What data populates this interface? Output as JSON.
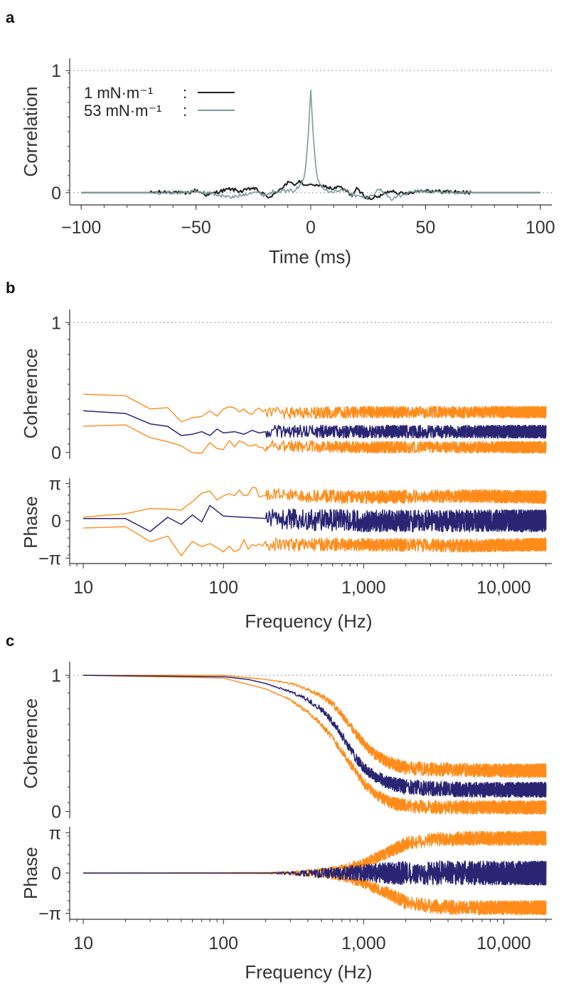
{
  "colors": {
    "dark": "#1e1e1e",
    "gray": "#7d9a9a",
    "orange": "#ff8c1a",
    "navy": "#2a2573",
    "reference": "#8a8a8a"
  },
  "chart_data": [
    {
      "panel": "a",
      "type": "line",
      "xlabel": "Time (ms)",
      "ylabel": "Correlation",
      "xlim": [
        -100,
        100
      ],
      "ylim": [
        -0.1,
        1.1
      ],
      "xticks": [
        -100,
        -50,
        0,
        50,
        100
      ],
      "xtick_labels": [
        "−100",
        "−50",
        "0",
        "50",
        "100"
      ],
      "yticks": [
        0,
        1
      ],
      "ytick_labels": [
        "0",
        "1"
      ],
      "reference_lines": [
        0,
        1
      ],
      "legend": {
        "placement": "top-left",
        "entries": [
          "1 mN·m⁻¹",
          "53 mN·m⁻¹"
        ]
      },
      "series": [
        {
          "name": "1 mN·m⁻¹",
          "color": "dark",
          "x": [
            -100,
            -70,
            -60,
            -55,
            -50,
            -45,
            -40,
            -35,
            -30,
            -25,
            -20,
            -17,
            -15,
            -12,
            -10,
            -7,
            -5,
            -2,
            0,
            3,
            5,
            8,
            10,
            12,
            15,
            18,
            20,
            25,
            30,
            35,
            40,
            45,
            50,
            55,
            60,
            70,
            100
          ],
          "y": [
            0,
            0,
            0.01,
            -0.01,
            0.02,
            -0.02,
            0.01,
            0.03,
            0.01,
            0.04,
            -0.02,
            -0.04,
            0.01,
            0.05,
            0.08,
            0.07,
            0.09,
            0.06,
            0.07,
            0.05,
            0.06,
            0.04,
            0.03,
            0.05,
            0.02,
            -0.02,
            0.03,
            -0.05,
            -0.03,
            0.02,
            -0.01,
            0.01,
            0.02,
            0.01,
            0.01,
            0,
            0
          ]
        },
        {
          "name": "53 mN·m⁻¹",
          "color": "gray",
          "x": [
            -100,
            -60,
            -50,
            -45,
            -40,
            -35,
            -30,
            -25,
            -20,
            -15,
            -10,
            -7,
            -5,
            -3,
            -2,
            -1,
            0,
            1,
            2,
            3,
            5,
            7,
            10,
            15,
            20,
            25,
            30,
            35,
            40,
            45,
            50,
            60,
            100
          ],
          "y": [
            0,
            0,
            0.01,
            0,
            -0.02,
            -0.04,
            -0.02,
            0.01,
            -0.02,
            0.02,
            0.01,
            0.02,
            0.05,
            0.12,
            0.25,
            0.5,
            0.84,
            0.5,
            0.25,
            0.12,
            0.05,
            0.02,
            0.01,
            0.02,
            -0.03,
            -0.04,
            0.03,
            -0.05,
            -0.02,
            0.01,
            0.01,
            0,
            0
          ]
        }
      ]
    },
    {
      "panel": "b",
      "type": "line",
      "xlabel": "Frequency (Hz)",
      "xscale": "log",
      "xlim": [
        8,
        22000
      ],
      "xticks": [
        10,
        100,
        1000,
        10000
      ],
      "xtick_labels": [
        "10",
        "100",
        "1,000",
        "10,000"
      ],
      "subplots": [
        {
          "ylabel": "Coherence",
          "ylim": [
            -0.05,
            1.1
          ],
          "yticks": [
            0,
            1
          ],
          "ytick_labels": [
            "0",
            "1"
          ],
          "reference_lines": [
            1
          ],
          "mean": {
            "color": "navy",
            "x": [
              10,
              20,
              30,
              40,
              50,
              60,
              70,
              80,
              90,
              100,
              120,
              140,
              160,
              180,
              200,
              1000,
              20000
            ],
            "y": [
              0.32,
              0.3,
              0.22,
              0.2,
              0.13,
              0.14,
              0.16,
              0.13,
              0.18,
              0.15,
              0.16,
              0.14,
              0.17,
              0.15,
              0.16,
              0.16,
              0.16
            ]
          },
          "band": {
            "color": "orange",
            "x": [
              10,
              20,
              30,
              40,
              50,
              60,
              100,
              200,
              1000,
              20000
            ],
            "upper": [
              0.46,
              0.42,
              0.33,
              0.32,
              0.28,
              0.3,
              0.31,
              0.3,
              0.31,
              0.31
            ],
            "lower": [
              0.2,
              0.22,
              0.12,
              0.09,
              0.05,
              0.02,
              0.05,
              0.05,
              0.04,
              0.04
            ]
          }
        },
        {
          "ylabel": "Phase",
          "ylim": [
            -3.6,
            3.6
          ],
          "yticks": [
            3.1416,
            0,
            -3.1416
          ],
          "ytick_labels": [
            "π",
            "0",
            "−π"
          ],
          "mean": {
            "color": "navy",
            "x": [
              10,
              20,
              30,
              40,
              50,
              60,
              70,
              80,
              100,
              200,
              1000,
              20000
            ],
            "y": [
              0.2,
              0.2,
              -0.9,
              0.3,
              -0.3,
              0.5,
              -0.1,
              1.3,
              0.4,
              0.2,
              0,
              0
            ]
          },
          "band": {
            "color": "orange",
            "x": [
              10,
              20,
              30,
              40,
              50,
              60,
              80,
              100,
              200,
              1000,
              5000,
              20000
            ],
            "upper": [
              0.7,
              1.1,
              0.5,
              1.2,
              0.8,
              1.8,
              2.1,
              2.4,
              2.2,
              2.0,
              2.1,
              2.0
            ],
            "lower": [
              -0.6,
              -0.7,
              -1.8,
              -0.8,
              -2.4,
              -1.2,
              -2.2,
              -2.1,
              -2.0,
              -2.0,
              -2.1,
              -2.0
            ]
          }
        }
      ]
    },
    {
      "panel": "c",
      "type": "line",
      "xlabel": "Frequency (Hz)",
      "xscale": "log",
      "xlim": [
        8,
        22000
      ],
      "xticks": [
        10,
        100,
        1000,
        10000
      ],
      "xtick_labels": [
        "10",
        "100",
        "1,000",
        "10,000"
      ],
      "subplots": [
        {
          "ylabel": "Coherence",
          "ylim": [
            -0.05,
            1.1
          ],
          "yticks": [
            0,
            1
          ],
          "ytick_labels": [
            "0",
            "1"
          ],
          "reference_lines": [
            1
          ],
          "mean": {
            "color": "navy",
            "x": [
              10,
              100,
              150,
              200,
              300,
              400,
              500,
              600,
              700,
              800,
              900,
              1000,
              1200,
              1500,
              2000,
              3000,
              5000,
              10000,
              20000
            ],
            "y": [
              1.0,
              0.99,
              0.97,
              0.94,
              0.88,
              0.82,
              0.75,
              0.66,
              0.56,
              0.46,
              0.38,
              0.32,
              0.26,
              0.21,
              0.18,
              0.17,
              0.16,
              0.16,
              0.16
            ]
          },
          "band": {
            "color": "orange",
            "x": [
              10,
              100,
              200,
              300,
              400,
              500,
              600,
              700,
              800,
              1000,
              1200,
              1500,
              2000,
              3000,
              10000,
              20000
            ],
            "upper": [
              1.0,
              1.0,
              0.97,
              0.94,
              0.9,
              0.85,
              0.79,
              0.71,
              0.63,
              0.5,
              0.42,
              0.36,
              0.32,
              0.31,
              0.3,
              0.3
            ],
            "lower": [
              1.0,
              0.98,
              0.9,
              0.82,
              0.73,
              0.64,
              0.54,
              0.44,
              0.35,
              0.21,
              0.13,
              0.07,
              0.04,
              0.03,
              0.03,
              0.03
            ]
          }
        },
        {
          "ylabel": "Phase",
          "ylim": [
            -3.6,
            3.6
          ],
          "yticks": [
            3.1416,
            0,
            -3.1416
          ],
          "ytick_labels": [
            "π",
            "0",
            "−π"
          ],
          "mean": {
            "color": "navy",
            "x": [
              10,
              100,
              1000,
              20000
            ],
            "y": [
              0,
              0,
              0,
              0
            ]
          },
          "band": {
            "color": "orange",
            "x": [
              10,
              100,
              300,
              500,
              700,
              1000,
              1500,
              2000,
              3000,
              5000,
              10000,
              20000
            ],
            "upper": [
              0,
              0.02,
              0.05,
              0.15,
              0.35,
              0.8,
              1.6,
              2.3,
              2.6,
              2.7,
              2.7,
              2.7
            ],
            "lower": [
              0,
              -0.02,
              -0.05,
              -0.15,
              -0.35,
              -0.8,
              -1.6,
              -2.3,
              -2.6,
              -2.7,
              -2.7,
              -2.7
            ]
          }
        }
      ]
    }
  ]
}
